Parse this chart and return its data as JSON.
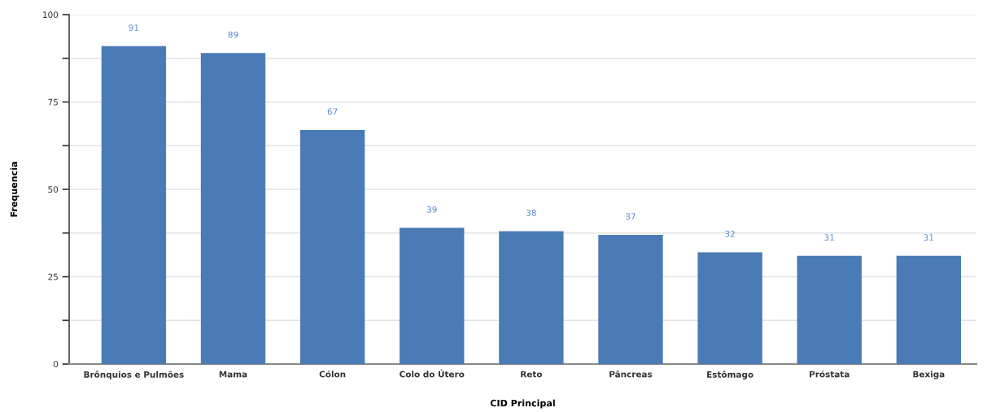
{
  "chart_data": {
    "type": "bar",
    "xlabel": "CID Principal",
    "ylabel": "Frequencia",
    "categories": [
      "Brônquios e Pulmões",
      "Mama",
      "Cólon",
      "Colo do Útero",
      "Reto",
      "Pâncreas",
      "Estômago",
      "Próstata",
      "Bexiga"
    ],
    "values": [
      91,
      89,
      67,
      39,
      38,
      37,
      32,
      31,
      31
    ],
    "color": "#4a7bb7",
    "ylim": [
      0,
      100
    ],
    "yticks": [
      0,
      {
        "value": 12.5,
        "label": null
      },
      25,
      {
        "value": 37.5,
        "label": null
      },
      50,
      {
        "value": 62.5,
        "label": null
      },
      75,
      {
        "value": 87.5,
        "label": null
      },
      100
    ],
    "grid": "y",
    "data_labels": true,
    "legend": false
  }
}
